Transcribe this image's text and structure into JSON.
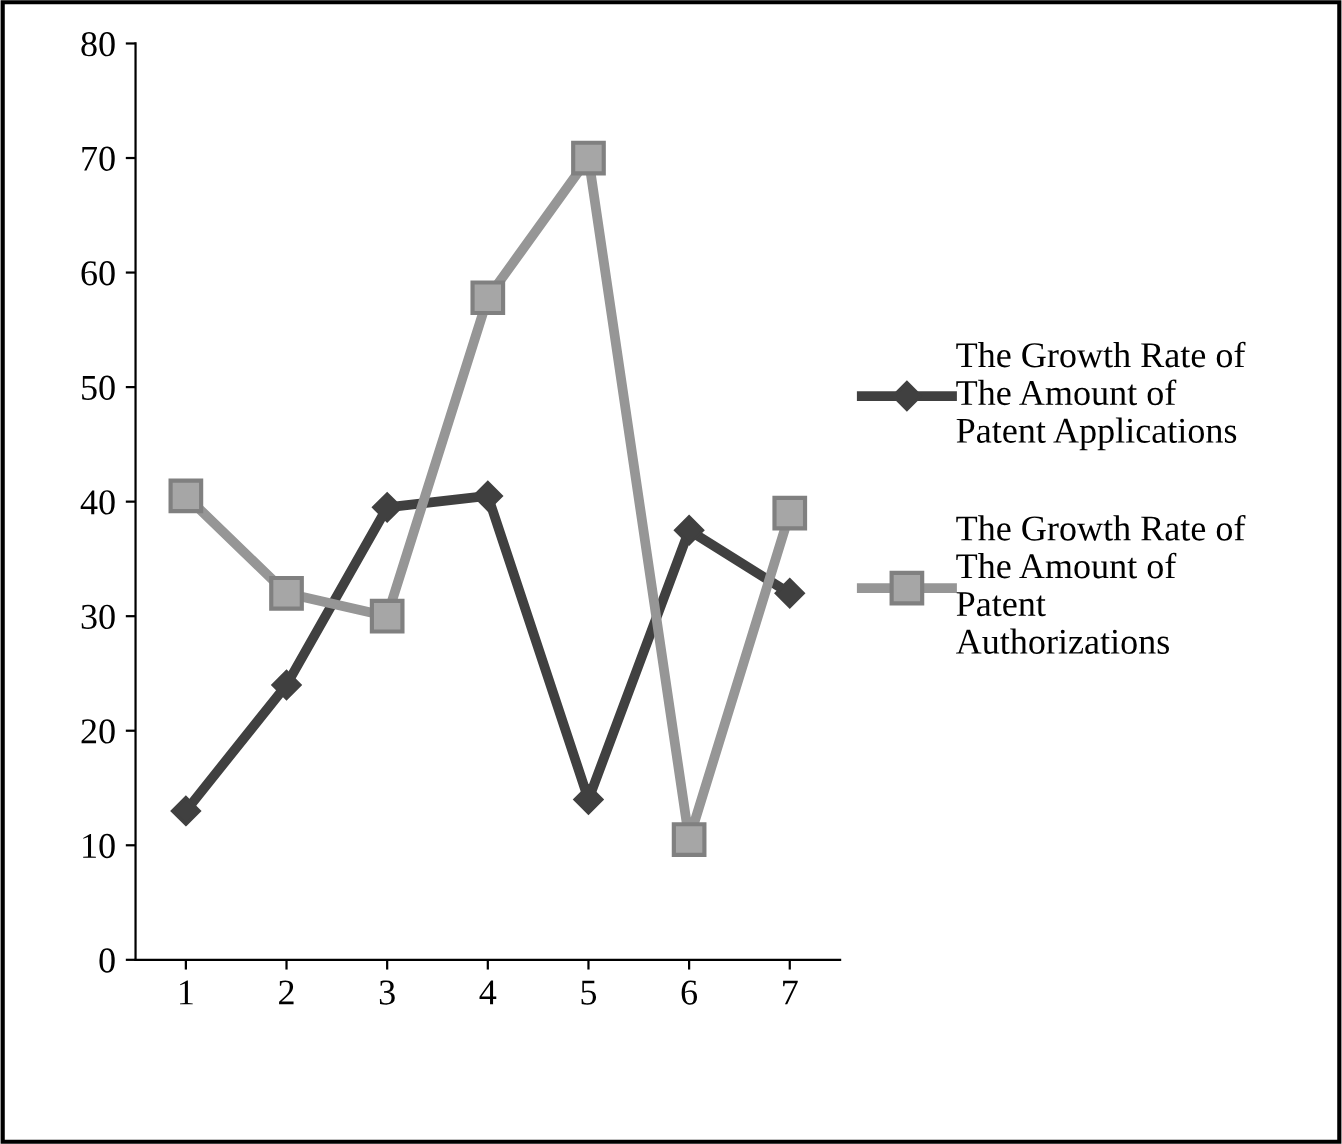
{
  "chart_data": {
    "type": "line",
    "categories": [
      "1",
      "2",
      "3",
      "4",
      "5",
      "6",
      "7"
    ],
    "series": [
      {
        "name": "The Growth Rate of The Amount of Patent Applications",
        "color": "#404040",
        "marker": "diamond",
        "values": [
          13,
          24,
          39.5,
          40.5,
          14,
          37.5,
          32
        ]
      },
      {
        "name": "The Growth Rate of The Amount of Patent Authorizations",
        "color": "#969696",
        "marker": "square",
        "values": [
          40.5,
          32,
          30,
          57.8,
          70,
          10.5,
          39
        ]
      }
    ],
    "ylim": [
      0,
      80
    ],
    "yticks": [
      0,
      10,
      20,
      30,
      40,
      50,
      60,
      70,
      80
    ],
    "grid": false,
    "legend": "right",
    "line_style": "solid"
  }
}
